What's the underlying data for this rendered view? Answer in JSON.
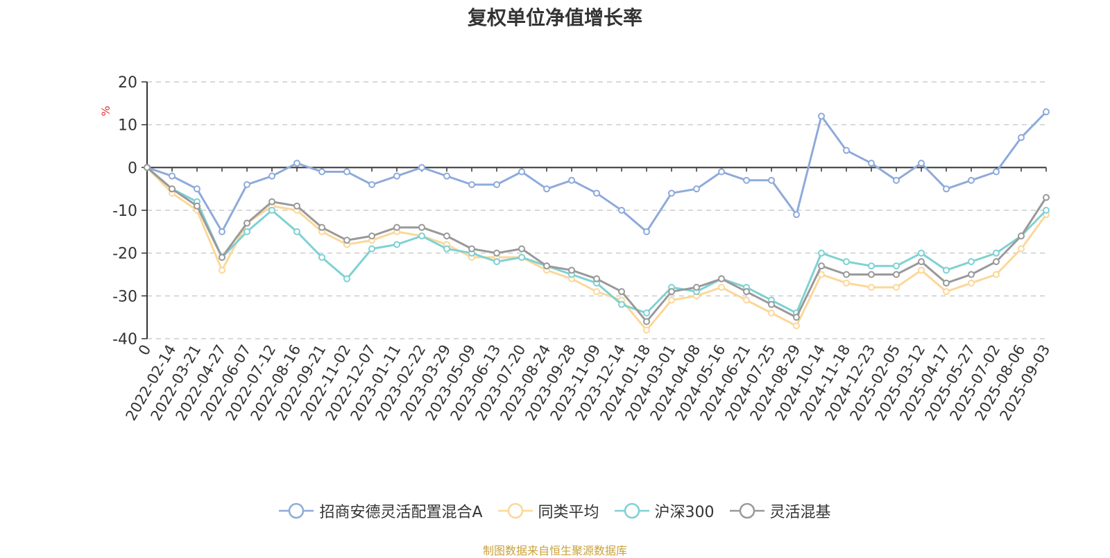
{
  "source_note": "制图数据来自恒生聚源数据库",
  "chart_data": {
    "type": "line",
    "title": "复权单位净值增长率",
    "ylabel": "%",
    "ylim": [
      -40,
      20
    ],
    "yticks": [
      20,
      10,
      0,
      -10,
      -20,
      -30,
      -40
    ],
    "grid": true,
    "legend_position": "bottom",
    "categories": [
      "0",
      "2022-02-14",
      "2022-03-21",
      "2022-04-27",
      "2022-06-07",
      "2022-07-12",
      "2022-08-16",
      "2022-09-21",
      "2022-11-02",
      "2022-12-07",
      "2023-01-11",
      "2023-02-22",
      "2023-03-29",
      "2023-05-09",
      "2023-06-13",
      "2023-07-20",
      "2023-08-24",
      "2023-09-28",
      "2023-11-09",
      "2023-12-14",
      "2024-01-18",
      "2024-03-01",
      "2024-04-08",
      "2024-05-16",
      "2024-06-21",
      "2024-07-25",
      "2024-08-29",
      "2024-10-14",
      "2024-11-18",
      "2024-12-23",
      "2025-02-05",
      "2025-03-12",
      "2025-04-17",
      "2025-05-27",
      "2025-07-02",
      "2025-08-06",
      "2025-09-03"
    ],
    "series": [
      {
        "name": "招商安德灵活配置混合A",
        "color": "#8eaadb",
        "values": [
          0,
          -2,
          -5,
          -15,
          -4,
          -2,
          1,
          -1,
          -1,
          -4,
          -2,
          0,
          -2,
          -4,
          -4,
          -1,
          -5,
          -3,
          -6,
          -10,
          -15,
          -6,
          -5,
          -1,
          -3,
          -3,
          -11,
          12,
          4,
          1,
          -3,
          1,
          -5,
          -3,
          -1,
          7,
          13
        ]
      },
      {
        "name": "同类平均",
        "color": "#fcd799",
        "values": [
          0,
          -6,
          -10,
          -24,
          -13,
          -9,
          -10,
          -15,
          -18,
          -17,
          -15,
          -16,
          -18,
          -21,
          -21,
          -21,
          -24,
          -26,
          -29,
          -31,
          -38,
          -31,
          -30,
          -28,
          -31,
          -34,
          -37,
          -25,
          -27,
          -28,
          -28,
          -24,
          -29,
          -27,
          -25,
          -19,
          -11
        ]
      },
      {
        "name": "沪深300",
        "color": "#7fd1d3",
        "values": [
          0,
          -5,
          -8,
          -21,
          -15,
          -10,
          -15,
          -21,
          -26,
          -19,
          -18,
          -16,
          -19,
          -20,
          -22,
          -21,
          -23,
          -25,
          -27,
          -32,
          -34,
          -28,
          -29,
          -26,
          -28,
          -31,
          -34,
          -20,
          -22,
          -23,
          -23,
          -20,
          -24,
          -22,
          -20,
          -16,
          -10
        ]
      },
      {
        "name": "灵活混基",
        "color": "#999999",
        "values": [
          0,
          -5,
          -9,
          -21,
          -13,
          -8,
          -9,
          -14,
          -17,
          -16,
          -14,
          -14,
          -16,
          -19,
          -20,
          -19,
          -23,
          -24,
          -26,
          -29,
          -36,
          -29,
          -28,
          -26,
          -29,
          -32,
          -35,
          -23,
          -25,
          -25,
          -25,
          -22,
          -27,
          -25,
          -22,
          -16,
          -7
        ]
      }
    ]
  }
}
